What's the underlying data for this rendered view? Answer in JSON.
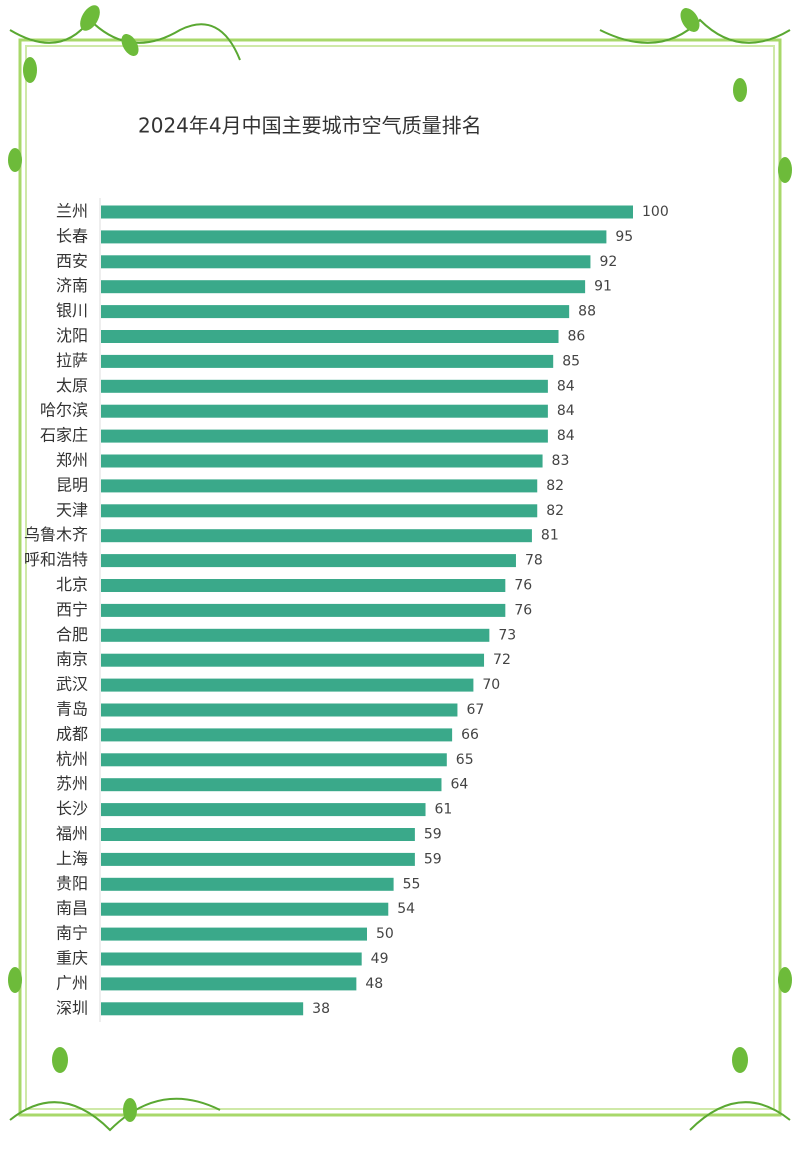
{
  "chart_data": {
    "type": "bar",
    "orientation": "horizontal",
    "title": "2024年4月中国主要城市空气质量排名",
    "categories": [
      "兰州",
      "长春",
      "西安",
      "济南",
      "银川",
      "沈阳",
      "拉萨",
      "太原",
      "哈尔滨",
      "石家庄",
      "郑州",
      "昆明",
      "天津",
      "乌鲁木齐",
      "呼和浩特",
      "北京",
      "西宁",
      "合肥",
      "南京",
      "武汉",
      "青岛",
      "成都",
      "杭州",
      "苏州",
      "长沙",
      "福州",
      "上海",
      "贵阳",
      "南昌",
      "南宁",
      "重庆",
      "广州",
      "深圳"
    ],
    "values": [
      100,
      95,
      92,
      91,
      88,
      86,
      85,
      84,
      84,
      84,
      83,
      82,
      82,
      81,
      78,
      76,
      76,
      73,
      72,
      70,
      67,
      66,
      65,
      64,
      61,
      59,
      59,
      55,
      54,
      50,
      49,
      48,
      38
    ],
    "color": "#3aa98a",
    "xlim": [
      0,
      100
    ]
  }
}
